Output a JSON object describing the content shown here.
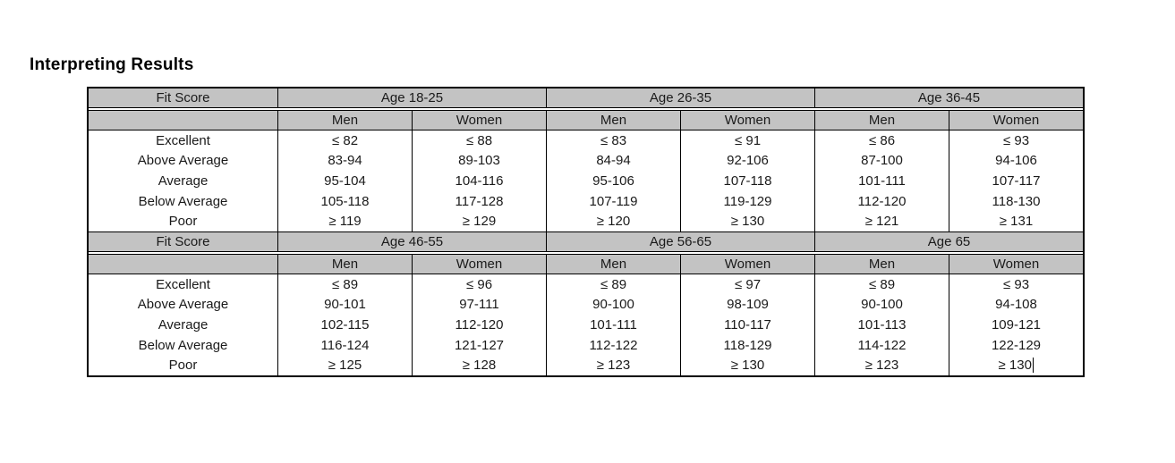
{
  "title": "Interpreting Results",
  "colors": {
    "header_bg": "#c3c3c3",
    "border": "#000000",
    "text": "#1a1a1a"
  },
  "text_cursor": {
    "visible": true,
    "location": "after last value (Age 65, Women, Poor)"
  },
  "table": {
    "corner_label": "Fit Score",
    "gender_labels": [
      "Men",
      "Women"
    ],
    "row_labels": [
      "Excellent",
      "Above Average",
      "Average",
      "Below Average",
      "Poor"
    ],
    "blocks": [
      {
        "age_groups": [
          "Age 18-25",
          "Age 26-35",
          "Age 36-45"
        ],
        "columns": [
          [
            "≤ 82",
            "83-94",
            "95-104",
            "105-118",
            "≥ 119"
          ],
          [
            "≤ 88",
            "89-103",
            "104-116",
            "117-128",
            "≥ 129"
          ],
          [
            "≤ 83",
            "84-94",
            "95-106",
            "107-119",
            "≥ 120"
          ],
          [
            "≤ 91",
            "92-106",
            "107-118",
            "119-129",
            "≥ 130"
          ],
          [
            "≤ 86",
            "87-100",
            "101-111",
            "112-120",
            "≥ 121"
          ],
          [
            "≤ 93",
            "94-106",
            "107-117",
            "118-130",
            "≥ 131"
          ]
        ]
      },
      {
        "age_groups": [
          "Age 46-55",
          "Age 56-65",
          "Age 65"
        ],
        "columns": [
          [
            "≤ 89",
            "90-101",
            "102-115",
            "116-124",
            "≥ 125"
          ],
          [
            "≤ 96",
            "97-111",
            "112-120",
            "121-127",
            "≥ 128"
          ],
          [
            "≤ 89",
            "90-100",
            "101-111",
            "112-122",
            "≥ 123"
          ],
          [
            "≤ 97",
            "98-109",
            "110-117",
            "118-129",
            "≥ 130"
          ],
          [
            "≤ 89",
            "90-100",
            "101-113",
            "114-122",
            "≥ 123"
          ],
          [
            "≤ 93",
            "94-108",
            "109-121",
            "122-129",
            "≥ 130"
          ]
        ]
      }
    ]
  }
}
